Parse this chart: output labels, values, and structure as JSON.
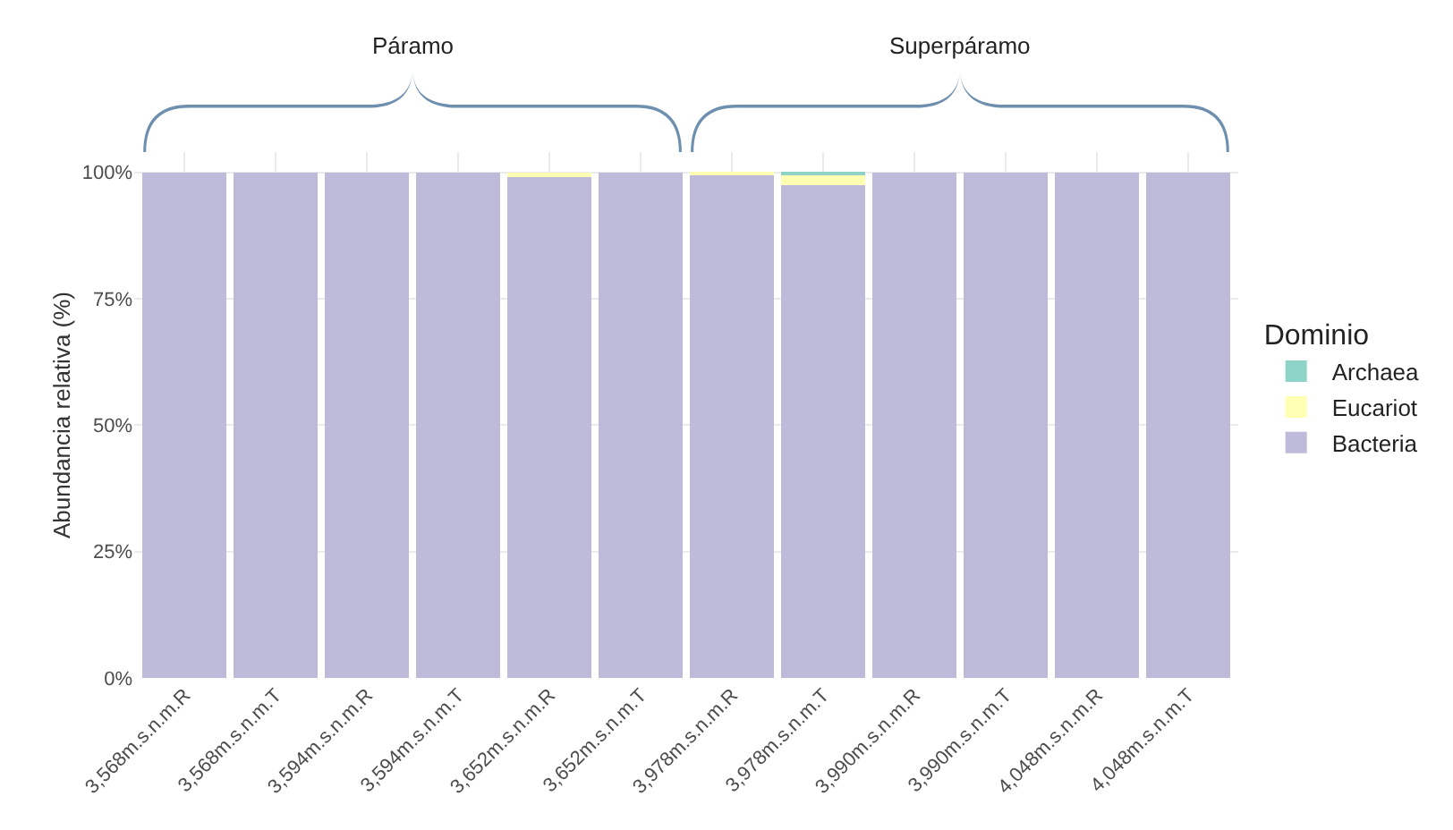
{
  "chart_data": {
    "type": "bar",
    "stacked": true,
    "ylabel": "Abundancia relativa (%)",
    "legend_title": "Dominio",
    "categories": [
      "3,568m.s.n.m.R",
      "3,568m.s.n.m.T",
      "3,594m.s.n.m.R",
      "3,594m.s.n.m.T",
      "3,652m.s.n.m.R",
      "3,652m.s.n.m.T",
      "3,978m.s.n.m.R",
      "3,978m.s.n.m.T",
      "3,990m.s.n.m.R",
      "3,990m.s.n.m.T",
      "4,048m.s.n.m.R",
      "4,048m.s.n.m.T"
    ],
    "series": [
      {
        "name": "Bacteria",
        "color": "#bebada",
        "values": [
          100,
          100,
          100,
          100,
          99,
          100,
          99.5,
          97.5,
          100,
          100,
          100,
          100
        ]
      },
      {
        "name": "Eucariot",
        "color": "#ffffb3",
        "values": [
          0,
          0,
          0,
          0,
          1,
          0,
          0.5,
          2,
          0,
          0,
          0,
          0
        ]
      },
      {
        "name": "Archaea",
        "color": "#8dd3c7",
        "values": [
          0,
          0,
          0,
          0,
          0,
          0,
          0,
          0.5,
          0,
          0,
          0,
          0
        ]
      }
    ],
    "ylim": [
      0,
      104
    ],
    "yticks": [
      {
        "value": 0,
        "label": "0%"
      },
      {
        "value": 25,
        "label": "25%"
      },
      {
        "value": 50,
        "label": "50%"
      },
      {
        "value": 75,
        "label": "75%"
      },
      {
        "value": 100,
        "label": "100%"
      }
    ],
    "grid": true,
    "legend": "right",
    "annotations": [
      "Páramo",
      "Superpáramo"
    ]
  }
}
